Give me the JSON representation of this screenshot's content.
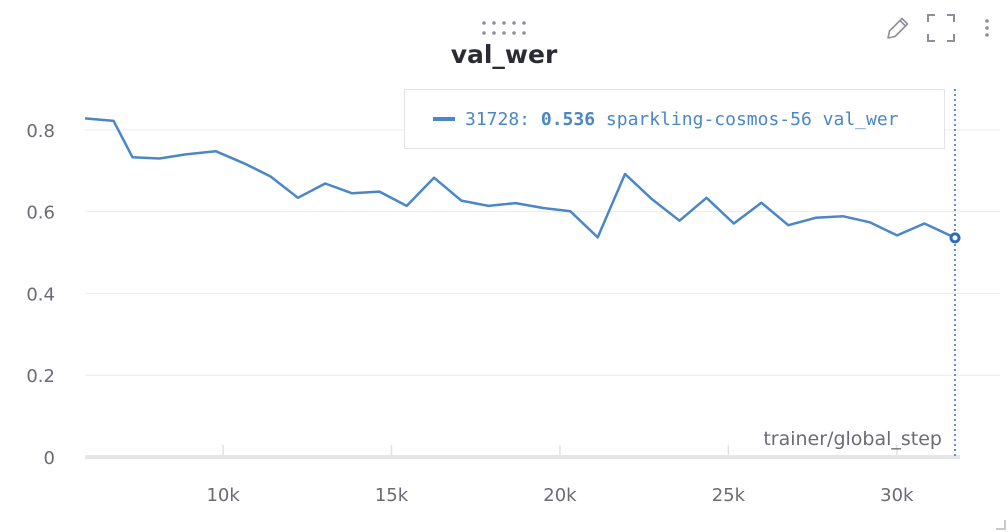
{
  "panel": {
    "title": "val_wer",
    "toolbar": {
      "drag_icon": "drag-handle-icon",
      "edit_icon": "pencil-icon",
      "fullscreen_icon": "fullscreen-icon",
      "menu_icon": "more-vertical-icon"
    }
  },
  "tooltip": {
    "step": "31728:",
    "value": "0.536",
    "run": "sparkling-cosmos-56",
    "metric": "val_wer",
    "color": "#4a86c8"
  },
  "chart_data": {
    "type": "line",
    "title": "val_wer",
    "xlabel": "trainer/global_step",
    "ylabel": "",
    "xlim": [
      6000,
      31728
    ],
    "ylim": [
      0,
      0.9
    ],
    "xticks": [
      10000,
      15000,
      20000,
      25000,
      30000
    ],
    "xtick_labels": [
      "10k",
      "15k",
      "20k",
      "25k",
      "30k"
    ],
    "yticks": [
      0,
      0.2,
      0.4,
      0.6,
      0.8
    ],
    "ytick_labels": [
      "0",
      "0.2",
      "0.4",
      "0.6",
      "0.8"
    ],
    "grid": true,
    "series": [
      {
        "name": "sparkling-cosmos-56",
        "color": "#4a86c8",
        "x": [
          5900,
          6750,
          7310,
          8110,
          8890,
          9780,
          10680,
          11410,
          12220,
          13030,
          13830,
          14640,
          15450,
          16260,
          17070,
          17880,
          18690,
          19500,
          20310,
          21120,
          21930,
          22740,
          23550,
          24350,
          25160,
          25980,
          26780,
          27590,
          28400,
          29200,
          30010,
          30820,
          31728
        ],
        "values": [
          0.828,
          0.822,
          0.733,
          0.73,
          0.74,
          0.748,
          0.716,
          0.686,
          0.634,
          0.669,
          0.645,
          0.649,
          0.614,
          0.683,
          0.627,
          0.614,
          0.621,
          0.609,
          0.601,
          0.537,
          0.692,
          0.63,
          0.578,
          0.634,
          0.571,
          0.622,
          0.567,
          0.585,
          0.589,
          0.574,
          0.542,
          0.571,
          0.536
        ]
      }
    ],
    "hover_x": 31728
  }
}
